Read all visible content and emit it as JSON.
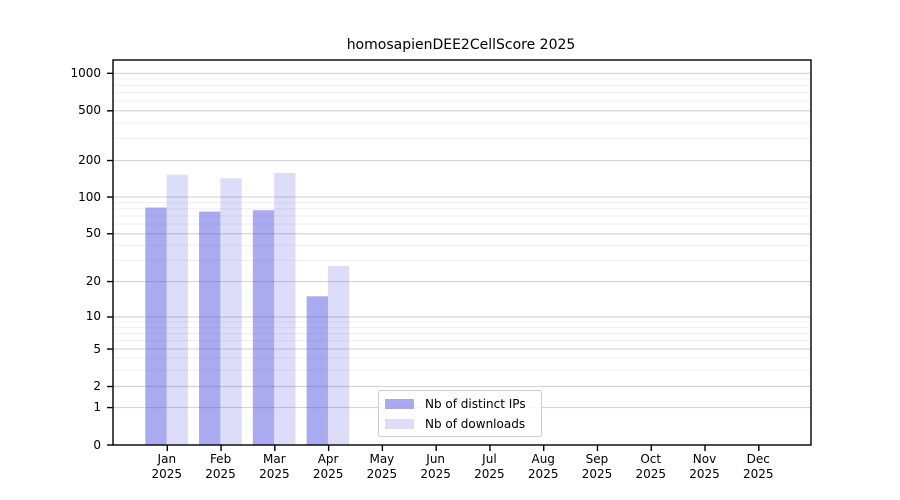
{
  "chart_data": {
    "type": "bar",
    "title": "homosapienDEE2CellScore 2025",
    "year_label": "2025",
    "categories": [
      "Jan",
      "Feb",
      "Mar",
      "Apr",
      "May",
      "Jun",
      "Jul",
      "Aug",
      "Sep",
      "Oct",
      "Nov",
      "Dec"
    ],
    "series": [
      {
        "name": "Nb of distinct IPs",
        "color": "rgba(85,85,225,0.5)",
        "color_on_white": "#aaaaf0",
        "values": [
          82,
          76,
          78,
          15,
          0,
          0,
          0,
          0,
          0,
          0,
          0,
          0
        ]
      },
      {
        "name": "Nb of downloads",
        "color": "rgba(85,85,225,0.2)",
        "color_on_white": "#dcdcf9",
        "values": [
          153,
          143,
          158,
          27,
          0,
          0,
          0,
          0,
          0,
          0,
          0,
          0
        ]
      }
    ],
    "y_ticks": [
      0,
      1,
      2,
      5,
      10,
      20,
      50,
      100,
      200,
      500,
      1000
    ],
    "ylim": [
      0,
      1300
    ],
    "yscale": "symlog",
    "grid": true,
    "legend_position": "lower center"
  },
  "colors": {
    "background": "#ffffff",
    "axis": "#000000",
    "major_grid": "#d4d4d4",
    "minor_grid": "#efefef",
    "text": "#000000"
  }
}
